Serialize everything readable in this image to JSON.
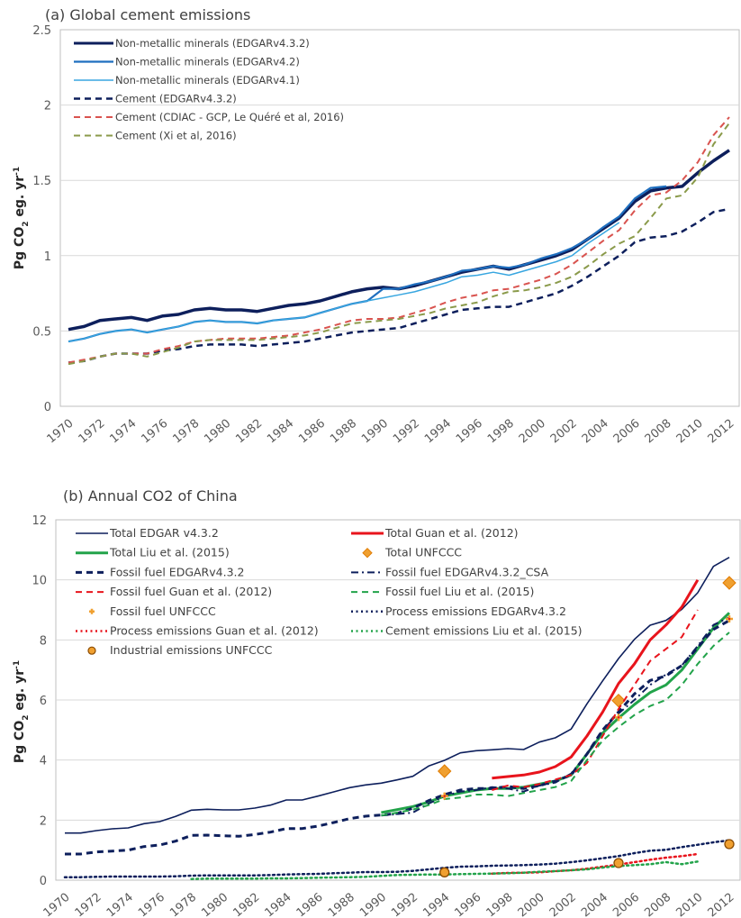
{
  "chart_data": [
    {
      "type": "line",
      "title": "(a)  Global cement emissions",
      "xlabel": "",
      "ylabel": "Pg CO2 eg. yr-1",
      "ylim": [
        0,
        2.5
      ],
      "yticks": [
        "0",
        "0.5",
        "1",
        "1.5",
        "2",
        "2.5"
      ],
      "xticks": [
        "1970",
        "1972",
        "1974",
        "1976",
        "1978",
        "1980",
        "1982",
        "1984",
        "1986",
        "1988",
        "1990",
        "1992",
        "1994",
        "1996",
        "1998",
        "2000",
        "2002",
        "2004",
        "2006",
        "2008",
        "2010",
        "2012"
      ],
      "grid": true,
      "legend_position": "top-left",
      "series": [
        {
          "name": "Non-metallic minerals (EDGARv4.3.2)",
          "color": "#0d1f5c",
          "style": "solid",
          "width": 3.5,
          "x_start": 1970,
          "values": [
            0.51,
            0.53,
            0.57,
            0.58,
            0.59,
            0.57,
            0.6,
            0.61,
            0.64,
            0.65,
            0.64,
            0.64,
            0.63,
            0.65,
            0.67,
            0.68,
            0.7,
            0.73,
            0.76,
            0.78,
            0.79,
            0.78,
            0.8,
            0.83,
            0.86,
            0.89,
            0.91,
            0.93,
            0.91,
            0.94,
            0.97,
            1.0,
            1.04,
            1.11,
            1.18,
            1.25,
            1.36,
            1.43,
            1.45,
            1.46,
            1.55,
            1.63,
            1.7
          ]
        },
        {
          "name": "Non-metallic minerals (EDGARv4.2)",
          "color": "#1f6fbf",
          "style": "solid",
          "width": 2.2,
          "x_start": 1970,
          "values": [
            0.43,
            0.45,
            0.48,
            0.5,
            0.51,
            0.49,
            0.51,
            0.53,
            0.56,
            0.57,
            0.56,
            0.56,
            0.55,
            0.57,
            0.58,
            0.59,
            0.62,
            0.65,
            0.68,
            0.7,
            0.78,
            0.78,
            0.81,
            0.83,
            0.86,
            0.9,
            0.91,
            0.93,
            0.92,
            0.94,
            0.98,
            1.01,
            1.05,
            1.11,
            1.19,
            1.26,
            1.38,
            1.45,
            1.46
          ]
        },
        {
          "name": "Non-metallic minerals (EDGARv4.1)",
          "color": "#38a6e0",
          "style": "solid",
          "width": 1.5,
          "x_start": 1970,
          "values": [
            0.43,
            0.45,
            0.48,
            0.5,
            0.51,
            0.49,
            0.51,
            0.53,
            0.56,
            0.57,
            0.56,
            0.56,
            0.55,
            0.57,
            0.58,
            0.59,
            0.62,
            0.65,
            0.68,
            0.7,
            0.72,
            0.74,
            0.76,
            0.79,
            0.82,
            0.86,
            0.87,
            0.89,
            0.87,
            0.9,
            0.93,
            0.96,
            1.0,
            1.08,
            1.15,
            1.22
          ]
        },
        {
          "name": "Cement (EDGARv4.3.2)",
          "color": "#0d1f5c",
          "style": "dash",
          "width": 2.5,
          "x_start": 1970,
          "values": [
            0.29,
            0.3,
            0.33,
            0.35,
            0.35,
            0.35,
            0.37,
            0.38,
            0.4,
            0.41,
            0.41,
            0.41,
            0.4,
            0.41,
            0.42,
            0.43,
            0.45,
            0.47,
            0.49,
            0.5,
            0.51,
            0.52,
            0.55,
            0.58,
            0.61,
            0.64,
            0.65,
            0.66,
            0.66,
            0.69,
            0.72,
            0.75,
            0.8,
            0.86,
            0.93,
            1.0,
            1.09,
            1.12,
            1.13,
            1.16,
            1.22,
            1.29,
            1.31
          ]
        },
        {
          "name": "Cement (CDIAC - GCP, Le Quéré et al, 2016)",
          "color": "#d9534f",
          "style": "dash",
          "width": 2,
          "x_start": 1970,
          "values": [
            0.29,
            0.31,
            0.33,
            0.35,
            0.35,
            0.35,
            0.38,
            0.4,
            0.43,
            0.44,
            0.45,
            0.45,
            0.45,
            0.46,
            0.47,
            0.49,
            0.51,
            0.54,
            0.57,
            0.58,
            0.58,
            0.59,
            0.62,
            0.65,
            0.69,
            0.72,
            0.74,
            0.77,
            0.78,
            0.81,
            0.84,
            0.88,
            0.94,
            1.02,
            1.1,
            1.17,
            1.3,
            1.4,
            1.42,
            1.5,
            1.62,
            1.8,
            1.92
          ]
        },
        {
          "name": "Cement (Xi et al, 2016)",
          "color": "#8a9a4a",
          "style": "dash",
          "width": 2,
          "x_start": 1970,
          "values": [
            0.28,
            0.3,
            0.33,
            0.35,
            0.35,
            0.33,
            0.36,
            0.39,
            0.43,
            0.44,
            0.44,
            0.44,
            0.44,
            0.45,
            0.46,
            0.47,
            0.49,
            0.52,
            0.55,
            0.56,
            0.57,
            0.58,
            0.6,
            0.62,
            0.65,
            0.67,
            0.69,
            0.73,
            0.76,
            0.77,
            0.79,
            0.82,
            0.86,
            0.93,
            1.01,
            1.08,
            1.13,
            1.25,
            1.38,
            1.4,
            1.52,
            1.74,
            1.88
          ]
        }
      ]
    },
    {
      "type": "line",
      "title": "(b)  Annual CO2 of China",
      "xlabel": "",
      "ylabel": "Pg CO2 eg. yr-1",
      "ylim": [
        0,
        12
      ],
      "yticks": [
        "0",
        "2",
        "4",
        "6",
        "8",
        "10",
        "12"
      ],
      "xticks": [
        "1970",
        "1972",
        "1974",
        "1976",
        "1978",
        "1980",
        "1982",
        "1984",
        "1986",
        "1988",
        "1990",
        "1992",
        "1994",
        "1996",
        "1998",
        "2000",
        "2002",
        "2004",
        "2006",
        "2008",
        "2010",
        "2012"
      ],
      "grid": true,
      "legend_position": "top",
      "series": [
        {
          "name": "Total EDGAR v4.3.2",
          "color": "#0d1f5c",
          "style": "solid",
          "width": 1.6,
          "x_start": 1970,
          "values": [
            1.57,
            1.57,
            1.65,
            1.71,
            1.74,
            1.88,
            1.95,
            2.12,
            2.33,
            2.36,
            2.34,
            2.34,
            2.4,
            2.5,
            2.67,
            2.67,
            2.8,
            2.94,
            3.08,
            3.17,
            3.23,
            3.34,
            3.46,
            3.8,
            3.99,
            4.24,
            4.31,
            4.34,
            4.38,
            4.35,
            4.6,
            4.74,
            5.03,
            5.87,
            6.64,
            7.38,
            8.02,
            8.49,
            8.65,
            9.02,
            9.57,
            10.45,
            10.75
          ]
        },
        {
          "name": "Total Guan et al. (2012)",
          "color": "#e8141c",
          "style": "solid",
          "width": 3,
          "x_start": 1997,
          "values": [
            3.4,
            3.45,
            3.5,
            3.6,
            3.78,
            4.1,
            4.8,
            5.6,
            6.55,
            7.2,
            8.0,
            8.5,
            9.1,
            10.0
          ]
        },
        {
          "name": "Total Liu et al. (2015)",
          "color": "#22a34a",
          "style": "solid",
          "width": 3,
          "x_start": 1990,
          "values": [
            2.25,
            2.35,
            2.45,
            2.6,
            2.8,
            2.9,
            3.0,
            3.05,
            3.05,
            3.1,
            3.2,
            3.3,
            3.5,
            4.2,
            4.9,
            5.4,
            5.85,
            6.25,
            6.5,
            7.0,
            7.7,
            8.4,
            8.9
          ]
        },
        {
          "name": "Total UNFCCC",
          "color": "#f0a030",
          "style": "diamond",
          "x_values": [
            1994,
            2005,
            2012
          ],
          "values": [
            3.63,
            5.98,
            9.9
          ]
        },
        {
          "name": "Fossil fuel EDGARv4.3.2",
          "color": "#0d1f5c",
          "style": "dash",
          "width": 3,
          "x_start": 1970,
          "values": [
            0.87,
            0.87,
            0.94,
            0.97,
            1.0,
            1.12,
            1.17,
            1.3,
            1.49,
            1.5,
            1.48,
            1.46,
            1.52,
            1.6,
            1.72,
            1.72,
            1.8,
            1.92,
            2.05,
            2.13,
            2.17,
            2.22,
            2.4,
            2.65,
            2.85,
            3.0,
            3.05,
            3.05,
            3.12,
            3.05,
            3.15,
            3.3,
            3.5,
            4.2,
            5.0,
            5.6,
            6.2,
            6.65,
            6.8,
            7.15,
            7.75,
            8.35,
            8.65
          ]
        },
        {
          "name": "Fossil fuel EDGARv4.3.2_CSA",
          "color": "#0d1f5c",
          "style": "dashdot",
          "width": 2,
          "x_start": 1990,
          "values": [
            2.15,
            2.2,
            2.25,
            2.55,
            2.8,
            2.95,
            3.0,
            3.1,
            3.05,
            2.95,
            3.15,
            3.25,
            3.55,
            4.2,
            5.0,
            5.55,
            6.0,
            6.5,
            6.85,
            7.15,
            7.8,
            8.5,
            8.75
          ]
        },
        {
          "name": "Fossil fuel Guan et al. (2012)",
          "color": "#e8141c",
          "style": "dash",
          "width": 2,
          "x_start": 1997,
          "values": [
            3.0,
            3.15,
            3.1,
            3.2,
            3.35,
            3.5,
            3.9,
            4.8,
            5.7,
            6.5,
            7.3,
            7.7,
            8.1,
            9.0
          ]
        },
        {
          "name": "Fossil fuel Liu et al. (2015)",
          "color": "#22a34a",
          "style": "dash",
          "width": 2,
          "x_start": 1990,
          "values": [
            2.15,
            2.25,
            2.35,
            2.5,
            2.7,
            2.75,
            2.85,
            2.85,
            2.8,
            2.9,
            3.0,
            3.1,
            3.3,
            4.0,
            4.65,
            5.1,
            5.5,
            5.8,
            6.0,
            6.5,
            7.2,
            7.8,
            8.25
          ]
        },
        {
          "name": "Fossil fuel UNFCCC",
          "color": "#f0a030",
          "style": "plus",
          "x_values": [
            1994,
            2005,
            2012
          ],
          "values": [
            2.8,
            5.42,
            8.7
          ]
        },
        {
          "name": "Process emissions EDGARv4.3.2",
          "color": "#0d1f5c",
          "style": "dot",
          "width": 2.5,
          "x_start": 1970,
          "values": [
            0.1,
            0.1,
            0.11,
            0.12,
            0.12,
            0.12,
            0.12,
            0.13,
            0.15,
            0.16,
            0.16,
            0.16,
            0.16,
            0.17,
            0.19,
            0.2,
            0.21,
            0.23,
            0.25,
            0.27,
            0.27,
            0.28,
            0.31,
            0.36,
            0.41,
            0.45,
            0.46,
            0.48,
            0.49,
            0.5,
            0.52,
            0.55,
            0.6,
            0.66,
            0.73,
            0.8,
            0.9,
            0.98,
            1.01,
            1.1,
            1.18,
            1.26,
            1.33
          ]
        },
        {
          "name": "Process emissions Guan et al. (2012)",
          "color": "#e8141c",
          "style": "dot",
          "width": 2.5,
          "x_start": 1997,
          "values": [
            0.22,
            0.24,
            0.25,
            0.26,
            0.3,
            0.33,
            0.38,
            0.45,
            0.52,
            0.6,
            0.68,
            0.75,
            0.8,
            0.87
          ]
        },
        {
          "name": "Cement emissions Liu et al. (2015)",
          "color": "#22a34a",
          "style": "dot",
          "width": 2.5,
          "x_start": 1978,
          "values": [
            0.04,
            0.05,
            0.05,
            0.05,
            0.05,
            0.06,
            0.06,
            0.07,
            0.08,
            0.09,
            0.1,
            0.11,
            0.14,
            0.17,
            0.18,
            0.19,
            0.19,
            0.2,
            0.21,
            0.22,
            0.23,
            0.25,
            0.28,
            0.3,
            0.33,
            0.36,
            0.42,
            0.47,
            0.5,
            0.53,
            0.6,
            0.53,
            0.62
          ]
        },
        {
          "name": "Industrial emissions UNFCCC",
          "color": "#f0a030",
          "style": "circle",
          "x_values": [
            1994,
            2005,
            2012
          ],
          "values": [
            0.26,
            0.57,
            1.2
          ]
        }
      ]
    }
  ]
}
